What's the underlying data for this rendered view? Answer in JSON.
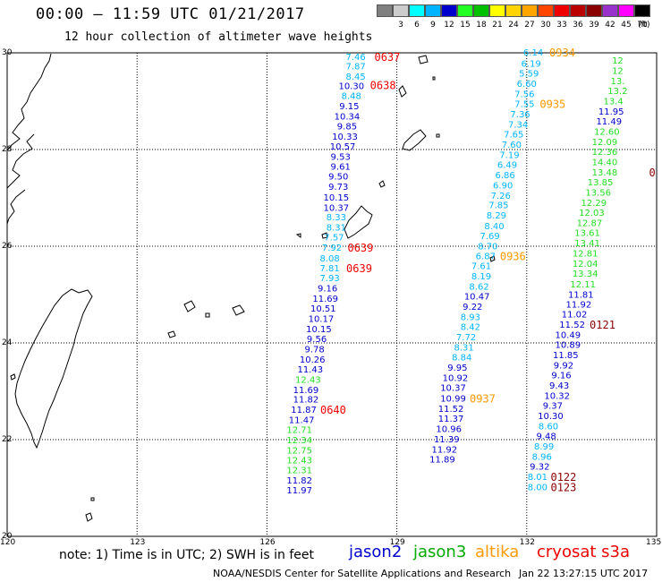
{
  "title": "00:00 – 11:59 UTC 01/21/2017",
  "subtitle": "12 hour collection of altimeter wave heights",
  "color_scale": {
    "unit": "(ft)",
    "bins": [
      {
        "label": "",
        "color": "#808080"
      },
      {
        "label": "3",
        "color": "#cccccc"
      },
      {
        "label": "6",
        "color": "#00ffff"
      },
      {
        "label": "9",
        "color": "#00b4ff"
      },
      {
        "label": "12",
        "color": "#0000cc"
      },
      {
        "label": "15",
        "color": "#22ff22"
      },
      {
        "label": "18",
        "color": "#00c000"
      },
      {
        "label": "21",
        "color": "#ffff00"
      },
      {
        "label": "24",
        "color": "#ffd400"
      },
      {
        "label": "27",
        "color": "#ffa500"
      },
      {
        "label": "30",
        "color": "#ff4500"
      },
      {
        "label": "33",
        "color": "#ee0000"
      },
      {
        "label": "36",
        "color": "#bb0000"
      },
      {
        "label": "39",
        "color": "#8b0000"
      },
      {
        "label": "42",
        "color": "#9932cc"
      },
      {
        "label": "45",
        "color": "#ff00ff"
      },
      {
        "label": "70",
        "color": "#000000"
      }
    ]
  },
  "map": {
    "lat_range": [
      20,
      30
    ],
    "lon_range": [
      120,
      135
    ],
    "lat_ticks": [
      "30",
      "28",
      "26",
      "24",
      "22",
      "20"
    ],
    "lon_ticks": [
      "120",
      "123",
      "126",
      "129",
      "132",
      "135"
    ],
    "grid": "dotted"
  },
  "tracks": [
    {
      "satellite": "jason2",
      "color": "#0000cc",
      "points": [
        {
          "lat": 29.93,
          "lon": 128.05,
          "swh": "7.46",
          "color": "#00b4ff"
        },
        {
          "lat": 29.73,
          "lon": 128.05,
          "swh": "7.87",
          "color": "#00b4ff"
        },
        {
          "lat": 29.52,
          "lon": 128.05,
          "swh": "8.45",
          "color": "#00b4ff"
        },
        {
          "lat": 29.32,
          "lon": 127.95,
          "swh": "10.30",
          "color": "#0000cc"
        },
        {
          "lat": 29.12,
          "lon": 127.95,
          "swh": "8.48",
          "color": "#00b4ff"
        },
        {
          "lat": 28.91,
          "lon": 127.9,
          "swh": "9.15",
          "color": "#0000cc"
        },
        {
          "lat": 28.69,
          "lon": 127.85,
          "swh": "10.34",
          "color": "#0000cc"
        },
        {
          "lat": 28.49,
          "lon": 127.85,
          "swh": "9.85",
          "color": "#0000cc"
        },
        {
          "lat": 28.28,
          "lon": 127.8,
          "swh": "10.33",
          "color": "#0000cc"
        },
        {
          "lat": 28.07,
          "lon": 127.75,
          "swh": "10.57",
          "color": "#0000cc"
        },
        {
          "lat": 27.86,
          "lon": 127.7,
          "swh": "9.53",
          "color": "#0000cc"
        },
        {
          "lat": 27.66,
          "lon": 127.7,
          "swh": "9.61",
          "color": "#0000cc"
        },
        {
          "lat": 27.45,
          "lon": 127.65,
          "swh": "9.50",
          "color": "#0000cc"
        },
        {
          "lat": 27.24,
          "lon": 127.65,
          "swh": "9.73",
          "color": "#0000cc"
        },
        {
          "lat": 27.02,
          "lon": 127.6,
          "swh": "10.15",
          "color": "#0000cc"
        },
        {
          "lat": 26.81,
          "lon": 127.6,
          "swh": "10.37",
          "color": "#0000cc"
        },
        {
          "lat": 26.61,
          "lon": 127.6,
          "swh": "8.33",
          "color": "#00b4ff"
        },
        {
          "lat": 26.4,
          "lon": 127.6,
          "swh": "8.31",
          "color": "#00b4ff"
        },
        {
          "lat": 26.19,
          "lon": 127.55,
          "swh": "7.57",
          "color": "#00b4ff"
        },
        {
          "lat": 25.98,
          "lon": 127.5,
          "swh": "7.92",
          "color": "#00b4ff"
        },
        {
          "lat": 25.76,
          "lon": 127.45,
          "swh": "8.08",
          "color": "#00b4ff"
        },
        {
          "lat": 25.56,
          "lon": 127.45,
          "swh": "7.81",
          "color": "#00b4ff"
        },
        {
          "lat": 25.35,
          "lon": 127.45,
          "swh": "7.93",
          "color": "#00b4ff"
        },
        {
          "lat": 25.14,
          "lon": 127.4,
          "swh": "9.16",
          "color": "#0000cc"
        },
        {
          "lat": 24.93,
          "lon": 127.35,
          "swh": "11.69",
          "color": "#0000cc"
        },
        {
          "lat": 24.72,
          "lon": 127.3,
          "swh": "10.51",
          "color": "#0000cc"
        },
        {
          "lat": 24.51,
          "lon": 127.25,
          "swh": "10.17",
          "color": "#0000cc"
        },
        {
          "lat": 24.3,
          "lon": 127.2,
          "swh": "10.15",
          "color": "#0000cc"
        },
        {
          "lat": 24.09,
          "lon": 127.15,
          "swh": "9.56",
          "color": "#0000cc"
        },
        {
          "lat": 23.88,
          "lon": 127.1,
          "swh": "9.78",
          "color": "#0000cc"
        },
        {
          "lat": 23.67,
          "lon": 127.05,
          "swh": "10.26",
          "color": "#0000cc"
        },
        {
          "lat": 23.46,
          "lon": 127.0,
          "swh": "11.43",
          "color": "#0000cc"
        },
        {
          "lat": 23.25,
          "lon": 126.95,
          "swh": "12.43",
          "color": "#22dd22"
        },
        {
          "lat": 23.04,
          "lon": 126.9,
          "swh": "11.69",
          "color": "#0000cc"
        },
        {
          "lat": 22.84,
          "lon": 126.9,
          "swh": "11.82",
          "color": "#0000cc"
        },
        {
          "lat": 22.63,
          "lon": 126.85,
          "swh": "11.87",
          "color": "#0000cc"
        },
        {
          "lat": 22.42,
          "lon": 126.8,
          "swh": "11.47",
          "color": "#0000cc"
        },
        {
          "lat": 22.21,
          "lon": 126.75,
          "swh": "12.71",
          "color": "#22dd22"
        },
        {
          "lat": 22.0,
          "lon": 126.75,
          "swh": "12.34",
          "color": "#22dd22"
        },
        {
          "lat": 21.79,
          "lon": 126.75,
          "swh": "12.75",
          "color": "#22dd22"
        },
        {
          "lat": 21.58,
          "lon": 126.75,
          "swh": "12.43",
          "color": "#22dd22"
        },
        {
          "lat": 21.38,
          "lon": 126.75,
          "swh": "12.31",
          "color": "#22dd22"
        },
        {
          "lat": 21.17,
          "lon": 126.75,
          "swh": "11.82",
          "color": "#0000cc"
        },
        {
          "lat": 20.96,
          "lon": 126.75,
          "swh": "11.97",
          "color": "#0000cc"
        }
      ]
    },
    {
      "satellite": "jason3",
      "color": "#00aa00",
      "points": [
        {
          "lat": 30.02,
          "lon": 132.15,
          "swh": "6.14",
          "color": "#00b4ff"
        },
        {
          "lat": 29.79,
          "lon": 132.1,
          "swh": "6.19",
          "color": "#00b4ff"
        },
        {
          "lat": 29.58,
          "lon": 132.05,
          "swh": "5.59",
          "color": "#00b4ff"
        },
        {
          "lat": 29.37,
          "lon": 132.0,
          "swh": "6.60",
          "color": "#00b4ff"
        },
        {
          "lat": 29.16,
          "lon": 131.95,
          "swh": "7.56",
          "color": "#00b4ff"
        },
        {
          "lat": 28.95,
          "lon": 131.95,
          "swh": "7.55",
          "color": "#00b4ff"
        },
        {
          "lat": 28.74,
          "lon": 131.85,
          "swh": "7.36",
          "color": "#00b4ff"
        },
        {
          "lat": 28.53,
          "lon": 131.8,
          "swh": "7.34",
          "color": "#00b4ff"
        },
        {
          "lat": 28.32,
          "lon": 131.7,
          "swh": "7.65",
          "color": "#00b4ff"
        },
        {
          "lat": 28.11,
          "lon": 131.65,
          "swh": "7.60",
          "color": "#00b4ff"
        },
        {
          "lat": 27.9,
          "lon": 131.6,
          "swh": "7.19",
          "color": "#00b4ff"
        },
        {
          "lat": 27.69,
          "lon": 131.55,
          "swh": "6.49",
          "color": "#00b4ff"
        },
        {
          "lat": 27.48,
          "lon": 131.5,
          "swh": "6.86",
          "color": "#00b4ff"
        },
        {
          "lat": 27.27,
          "lon": 131.45,
          "swh": "6.90",
          "color": "#00b4ff"
        },
        {
          "lat": 27.06,
          "lon": 131.4,
          "swh": "7.26",
          "color": "#00b4ff"
        },
        {
          "lat": 26.86,
          "lon": 131.35,
          "swh": "7.85",
          "color": "#00b4ff"
        },
        {
          "lat": 26.65,
          "lon": 131.3,
          "swh": "8.29",
          "color": "#00b4ff"
        },
        {
          "lat": 26.43,
          "lon": 131.25,
          "swh": "8.40",
          "color": "#00b4ff"
        },
        {
          "lat": 26.22,
          "lon": 131.15,
          "swh": "7.69",
          "color": "#00b4ff"
        },
        {
          "lat": 26.01,
          "lon": 131.1,
          "swh": "8.70",
          "color": "#00b4ff"
        },
        {
          "lat": 25.81,
          "lon": 131.05,
          "swh": "6.87",
          "color": "#00b4ff"
        },
        {
          "lat": 25.6,
          "lon": 130.95,
          "swh": "7.61",
          "color": "#00b4ff"
        },
        {
          "lat": 25.39,
          "lon": 130.95,
          "swh": "8.19",
          "color": "#00b4ff"
        },
        {
          "lat": 25.18,
          "lon": 130.9,
          "swh": "8.62",
          "color": "#00b4ff"
        },
        {
          "lat": 24.97,
          "lon": 130.85,
          "swh": "10.47",
          "color": "#0000cc"
        },
        {
          "lat": 24.76,
          "lon": 130.75,
          "swh": "9.22",
          "color": "#0000cc"
        },
        {
          "lat": 24.55,
          "lon": 130.7,
          "swh": "8.93",
          "color": "#00b4ff"
        },
        {
          "lat": 24.34,
          "lon": 130.7,
          "swh": "8.42",
          "color": "#00b4ff"
        },
        {
          "lat": 24.13,
          "lon": 130.6,
          "swh": "7.72",
          "color": "#00b4ff"
        },
        {
          "lat": 23.92,
          "lon": 130.55,
          "swh": "8.31",
          "color": "#00b4ff"
        },
        {
          "lat": 23.71,
          "lon": 130.5,
          "swh": "8.84",
          "color": "#00b4ff"
        },
        {
          "lat": 23.5,
          "lon": 130.4,
          "swh": "9.95",
          "color": "#0000cc"
        },
        {
          "lat": 23.29,
          "lon": 130.35,
          "swh": "10.92",
          "color": "#0000cc"
        },
        {
          "lat": 23.08,
          "lon": 130.3,
          "swh": "10.37",
          "color": "#0000cc"
        },
        {
          "lat": 22.86,
          "lon": 130.3,
          "swh": "10.99",
          "color": "#0000cc"
        },
        {
          "lat": 22.65,
          "lon": 130.25,
          "swh": "11.52",
          "color": "#0000cc"
        },
        {
          "lat": 22.44,
          "lon": 130.25,
          "swh": "11.37",
          "color": "#0000cc"
        },
        {
          "lat": 22.23,
          "lon": 130.2,
          "swh": "10.96",
          "color": "#0000cc"
        },
        {
          "lat": 22.02,
          "lon": 130.15,
          "swh": "11.39",
          "color": "#0000cc"
        },
        {
          "lat": 21.81,
          "lon": 130.1,
          "swh": "11.92",
          "color": "#0000cc"
        },
        {
          "lat": 21.6,
          "lon": 130.05,
          "swh": "11.89",
          "color": "#0000cc"
        }
      ]
    },
    {
      "satellite": "altika",
      "color": "#ff9900",
      "points": [
        {
          "lat": 29.85,
          "lon": 134.1,
          "swh": "12",
          "color": "#22dd22"
        },
        {
          "lat": 29.64,
          "lon": 134.1,
          "swh": "12",
          "color": "#22dd22"
        },
        {
          "lat": 29.43,
          "lon": 134.1,
          "swh": "13.",
          "color": "#22dd22"
        },
        {
          "lat": 29.22,
          "lon": 134.1,
          "swh": "13.2",
          "color": "#22dd22"
        },
        {
          "lat": 29.01,
          "lon": 134.0,
          "swh": "13.4",
          "color": "#22dd22"
        },
        {
          "lat": 28.8,
          "lon": 133.95,
          "swh": "11.95",
          "color": "#0000cc"
        },
        {
          "lat": 28.59,
          "lon": 133.9,
          "swh": "11.49",
          "color": "#0000cc"
        },
        {
          "lat": 28.38,
          "lon": 133.85,
          "swh": "12.60",
          "color": "#22dd22"
        },
        {
          "lat": 28.17,
          "lon": 133.8,
          "swh": "12.09",
          "color": "#22dd22"
        },
        {
          "lat": 27.96,
          "lon": 133.8,
          "swh": "12.36",
          "color": "#22dd22"
        },
        {
          "lat": 27.75,
          "lon": 133.8,
          "swh": "14.40",
          "color": "#22dd22"
        },
        {
          "lat": 27.54,
          "lon": 133.8,
          "swh": "13.48",
          "color": "#22dd22"
        },
        {
          "lat": 27.33,
          "lon": 133.7,
          "swh": "13.85",
          "color": "#22dd22"
        },
        {
          "lat": 27.12,
          "lon": 133.65,
          "swh": "13.56",
          "color": "#22dd22"
        },
        {
          "lat": 26.91,
          "lon": 133.55,
          "swh": "12.29",
          "color": "#22dd22"
        },
        {
          "lat": 26.7,
          "lon": 133.5,
          "swh": "12.03",
          "color": "#22dd22"
        },
        {
          "lat": 26.49,
          "lon": 133.45,
          "swh": "12.87",
          "color": "#22dd22"
        },
        {
          "lat": 26.29,
          "lon": 133.4,
          "swh": "13.61",
          "color": "#22dd22"
        },
        {
          "lat": 26.07,
          "lon": 133.4,
          "swh": "13.41",
          "color": "#22dd22"
        },
        {
          "lat": 25.86,
          "lon": 133.35,
          "swh": "12.81",
          "color": "#22dd22"
        },
        {
          "lat": 25.65,
          "lon": 133.35,
          "swh": "12.04",
          "color": "#22dd22"
        },
        {
          "lat": 25.44,
          "lon": 133.35,
          "swh": "13.34",
          "color": "#22dd22"
        },
        {
          "lat": 25.22,
          "lon": 133.3,
          "swh": "12.11",
          "color": "#22dd22"
        },
        {
          "lat": 25.01,
          "lon": 133.25,
          "swh": "11.81",
          "color": "#0000cc"
        },
        {
          "lat": 24.81,
          "lon": 133.2,
          "swh": "11.92",
          "color": "#0000cc"
        },
        {
          "lat": 24.6,
          "lon": 133.1,
          "swh": "11.02",
          "color": "#0000cc"
        },
        {
          "lat": 24.39,
          "lon": 133.05,
          "swh": "11.52",
          "color": "#0000cc"
        },
        {
          "lat": 24.18,
          "lon": 132.95,
          "swh": "10.49",
          "color": "#0000cc"
        },
        {
          "lat": 23.97,
          "lon": 132.95,
          "swh": "10.89",
          "color": "#0000cc"
        },
        {
          "lat": 23.76,
          "lon": 132.9,
          "swh": "11.85",
          "color": "#0000cc"
        },
        {
          "lat": 23.55,
          "lon": 132.85,
          "swh": "9.92",
          "color": "#0000cc"
        },
        {
          "lat": 23.34,
          "lon": 132.8,
          "swh": "9.16",
          "color": "#0000cc"
        },
        {
          "lat": 23.13,
          "lon": 132.75,
          "swh": "9.43",
          "color": "#0000cc"
        },
        {
          "lat": 22.92,
          "lon": 132.7,
          "swh": "10.32",
          "color": "#0000cc"
        },
        {
          "lat": 22.71,
          "lon": 132.6,
          "swh": "9.37",
          "color": "#0000cc"
        },
        {
          "lat": 22.5,
          "lon": 132.55,
          "swh": "10.30",
          "color": "#0000cc"
        },
        {
          "lat": 22.29,
          "lon": 132.5,
          "swh": "8.60",
          "color": "#00b4ff"
        },
        {
          "lat": 22.08,
          "lon": 132.45,
          "swh": "9.48",
          "color": "#0000cc"
        },
        {
          "lat": 21.87,
          "lon": 132.4,
          "swh": "8.99",
          "color": "#00b4ff"
        },
        {
          "lat": 21.66,
          "lon": 132.35,
          "swh": "8.96",
          "color": "#00b4ff"
        },
        {
          "lat": 21.45,
          "lon": 132.3,
          "swh": "9.32",
          "color": "#0000cc"
        },
        {
          "lat": 21.24,
          "lon": 132.25,
          "swh": "8.01",
          "color": "#00b4ff"
        },
        {
          "lat": 21.03,
          "lon": 132.25,
          "swh": "8.00",
          "color": "#00b4ff"
        }
      ]
    },
    {
      "satellite": "cryosat s3a",
      "color": "#ee0000",
      "points": []
    }
  ],
  "pass_labels": [
    {
      "text": "0637",
      "lat": 29.93,
      "lon": 128.78,
      "color": "#ee0000"
    },
    {
      "text": "0638",
      "lat": 29.34,
      "lon": 128.68,
      "color": "#ee0000"
    },
    {
      "text": "0639",
      "lat": 25.98,
      "lon": 128.16,
      "color": "#ee0000"
    },
    {
      "text": "0639",
      "lat": 25.56,
      "lon": 128.13,
      "color": "#ee0000"
    },
    {
      "text": "0640",
      "lat": 22.63,
      "lon": 127.53,
      "color": "#ee0000"
    },
    {
      "text": "0934",
      "lat": 30.02,
      "lon": 132.82,
      "color": "#ff9900"
    },
    {
      "text": "0935",
      "lat": 28.95,
      "lon": 132.6,
      "color": "#ff9900"
    },
    {
      "text": "0936",
      "lat": 25.81,
      "lon": 131.68,
      "color": "#ff9900"
    },
    {
      "text": "0937",
      "lat": 22.86,
      "lon": 130.98,
      "color": "#ff9900"
    },
    {
      "text": "0121",
      "lat": 24.39,
      "lon": 133.75,
      "color": "#8b0000"
    },
    {
      "text": "0122",
      "lat": 21.24,
      "lon": 132.85,
      "color": "#8b0000"
    },
    {
      "text": "0123",
      "lat": 21.03,
      "lon": 132.85,
      "color": "#8b0000"
    },
    {
      "text": "0",
      "lat": 27.54,
      "lon": 134.9,
      "color": "#8b0000"
    }
  ],
  "footer": {
    "note": "note:  1) Time is in UTC;  2) SWH is in feet",
    "credit": "NOAA/NESDIS Center for Satellite Applications and Research",
    "generated": "Jan 22 13:27:15 UTC 2017"
  }
}
